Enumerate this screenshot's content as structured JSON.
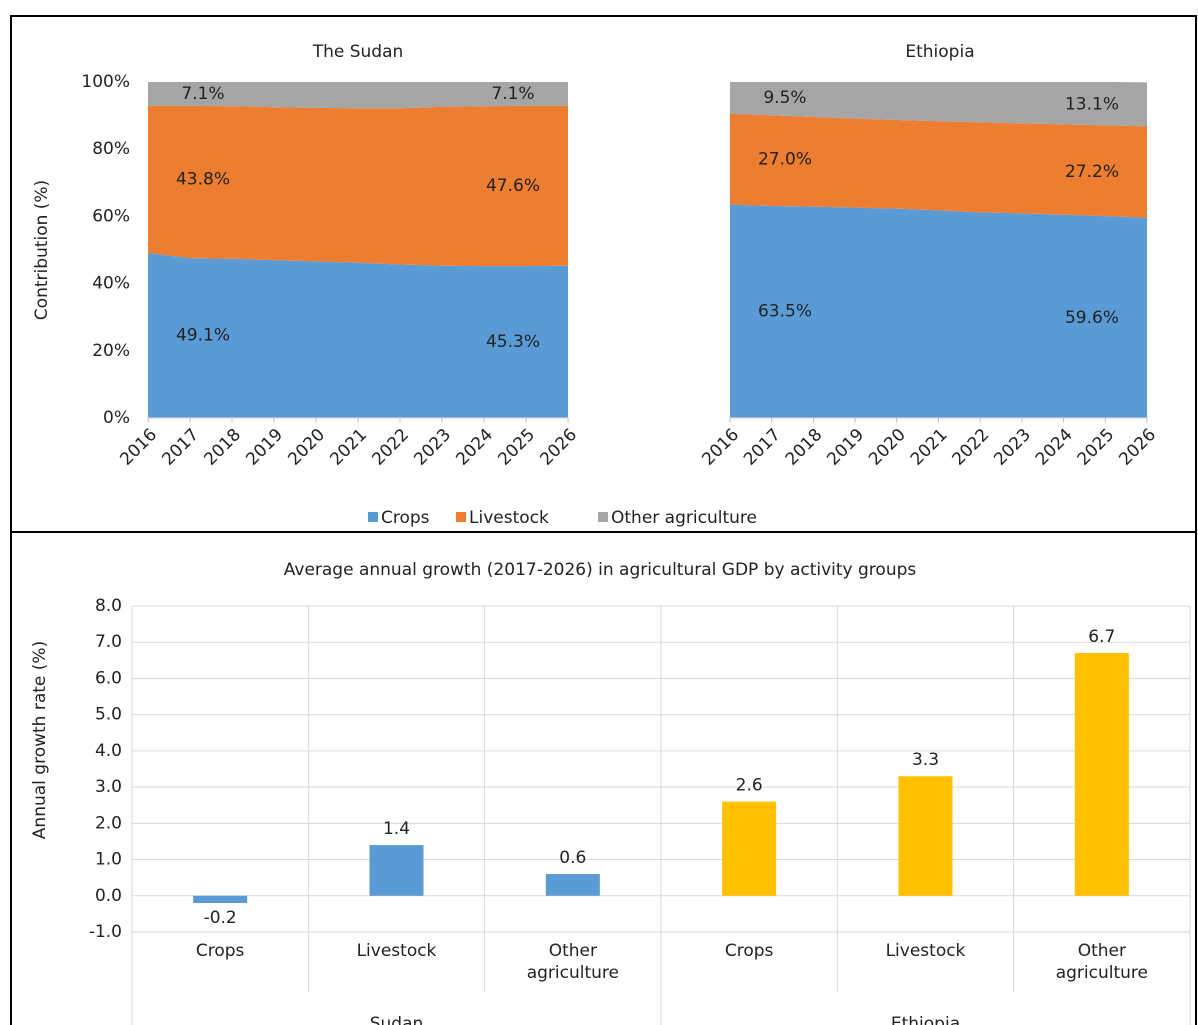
{
  "chart_data": [
    {
      "type": "stacked_area",
      "title": "The Sudan",
      "ylabel": "Contribution (%)",
      "x": [
        2016,
        2017,
        2018,
        2019,
        2020,
        2021,
        2022,
        2023,
        2024,
        2025,
        2026
      ],
      "xlim": [
        2016,
        2026
      ],
      "ylim": [
        0,
        100
      ],
      "yticks": [
        {
          "value": 0,
          "label": "0%"
        },
        {
          "value": 20,
          "label": "20%"
        },
        {
          "value": 40,
          "label": "40%"
        },
        {
          "value": 60,
          "label": "60%"
        },
        {
          "value": 80,
          "label": "80%"
        },
        {
          "value": 100,
          "label": "100%"
        }
      ],
      "series": [
        {
          "name": "Crops",
          "color": "#5b9bd5",
          "values": [
            49.1,
            47.6,
            47.4,
            47.0,
            46.6,
            46.2,
            45.7,
            45.3,
            45.2,
            45.2,
            45.3
          ],
          "value_labels": [
            "49.1%",
            null,
            null,
            null,
            null,
            null,
            null,
            null,
            null,
            null,
            "45.3%"
          ]
        },
        {
          "name": "Livestock",
          "color": "#ed7d31",
          "values": [
            43.8,
            45.3,
            45.4,
            45.5,
            45.7,
            46.0,
            46.5,
            47.3,
            47.6,
            47.7,
            47.6
          ],
          "value_labels": [
            "43.8%",
            null,
            null,
            null,
            null,
            null,
            null,
            null,
            null,
            null,
            "47.6%"
          ]
        },
        {
          "name": "Other agriculture",
          "color": "#a5a5a5",
          "values": [
            7.1,
            7.1,
            7.2,
            7.5,
            7.7,
            7.8,
            7.8,
            7.4,
            7.2,
            7.1,
            7.1
          ],
          "value_labels": [
            "7.1%",
            null,
            null,
            null,
            null,
            null,
            null,
            null,
            null,
            null,
            "7.1%"
          ]
        }
      ]
    },
    {
      "type": "stacked_area",
      "title": "Ethiopia",
      "x": [
        2016,
        2017,
        2018,
        2019,
        2020,
        2021,
        2022,
        2023,
        2024,
        2025,
        2026
      ],
      "xlim": [
        2016,
        2026
      ],
      "ylim": [
        0,
        100
      ],
      "series": [
        {
          "color": "#5b9bd5",
          "values": [
            63.5,
            63.1,
            62.9,
            62.6,
            62.3,
            61.8,
            61.2,
            60.9,
            60.5,
            60.1,
            59.6
          ],
          "value_labels": [
            "63.5%",
            null,
            null,
            null,
            null,
            null,
            null,
            null,
            null,
            null,
            "59.6%"
          ]
        },
        {
          "color": "#ed7d31",
          "values": [
            27.0,
            27.0,
            26.7,
            26.5,
            26.4,
            26.5,
            26.8,
            26.8,
            26.9,
            27.0,
            27.2
          ],
          "value_labels": [
            "27.0%",
            null,
            null,
            null,
            null,
            null,
            null,
            null,
            null,
            null,
            "27.2%"
          ]
        },
        {
          "color": "#a5a5a5",
          "values": [
            9.5,
            9.9,
            10.4,
            10.9,
            11.3,
            11.7,
            12.0,
            12.3,
            12.6,
            12.9,
            13.1
          ],
          "value_labels": [
            "9.5%",
            null,
            null,
            null,
            null,
            null,
            null,
            null,
            null,
            null,
            "13.1%"
          ]
        }
      ]
    },
    {
      "type": "bar",
      "title": "Average annual growth (2017-2026) in agricultural GDP by activity groups",
      "ylabel": "Annual growth rate (%)",
      "categories": [
        "Crops",
        "Livestock",
        "Other agriculture",
        "Crops",
        "Livestock",
        "Other agriculture"
      ],
      "groups": [
        "Sudan",
        "Ethiopia"
      ],
      "values": [
        -0.2,
        1.4,
        0.6,
        2.6,
        3.3,
        6.7
      ],
      "colors": [
        "#5b9bd5",
        "#5b9bd5",
        "#5b9bd5",
        "#ffc000",
        "#ffc000",
        "#ffc000"
      ],
      "ylim": [
        -1,
        8
      ],
      "yticks": [
        {
          "value": -1,
          "label": "-1.0"
        },
        {
          "value": 0,
          "label": "0.0"
        },
        {
          "value": 1,
          "label": "1.0"
        },
        {
          "value": 2,
          "label": "2.0"
        },
        {
          "value": 3,
          "label": "3.0"
        },
        {
          "value": 4,
          "label": "4.0"
        },
        {
          "value": 5,
          "label": "5.0"
        },
        {
          "value": 6,
          "label": "6.0"
        },
        {
          "value": 7,
          "label": "7.0"
        },
        {
          "value": 8,
          "label": "8.0"
        }
      ],
      "grid": true
    }
  ]
}
